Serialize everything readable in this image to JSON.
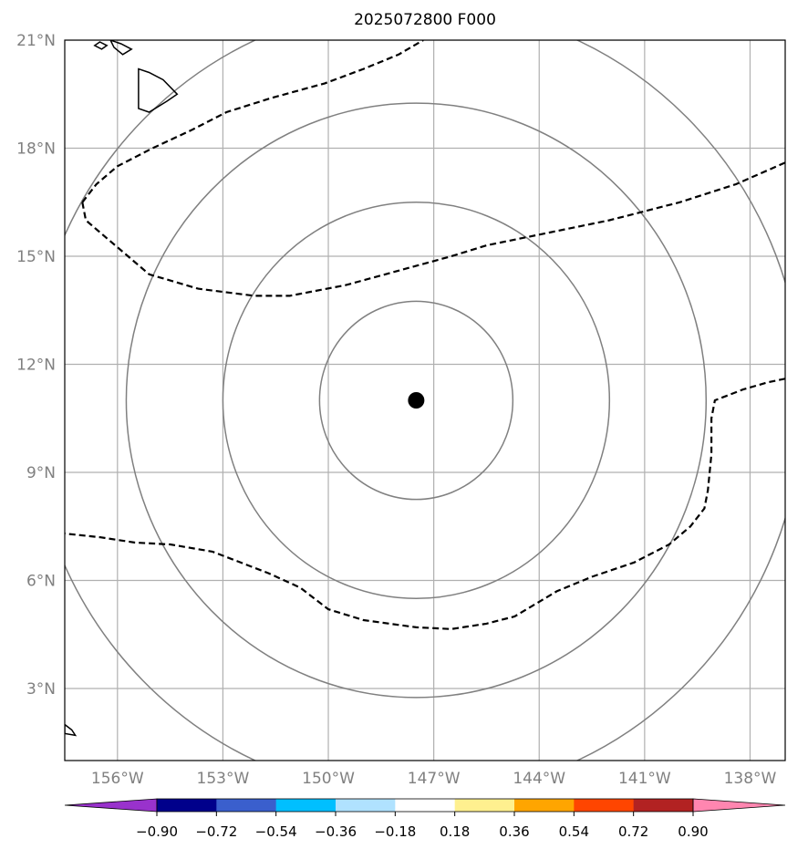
{
  "title": "2025072800 F000",
  "map": {
    "lat_range": [
      1,
      21
    ],
    "lon_range": [
      -158,
      -137.5
    ],
    "lat_ticks": [
      {
        "value": 21,
        "label": "21°N"
      },
      {
        "value": 18,
        "label": "18°N"
      },
      {
        "value": 15,
        "label": "15°N"
      },
      {
        "value": 12,
        "label": "12°N"
      },
      {
        "value": 9,
        "label": "9°N"
      },
      {
        "value": 6,
        "label": "6°N"
      },
      {
        "value": 3,
        "label": "3°N"
      }
    ],
    "lon_ticks": [
      {
        "value": -156.5,
        "label": "156°W"
      },
      {
        "value": -153.5,
        "label": "153°W"
      },
      {
        "value": -150.5,
        "label": "150°W"
      },
      {
        "value": -147.5,
        "label": "147°W"
      },
      {
        "value": -144.5,
        "label": "144°W"
      },
      {
        "value": -141.5,
        "label": "141°W"
      },
      {
        "value": -138.5,
        "label": "138°W"
      }
    ],
    "center": {
      "lon": -148,
      "lat": 11
    },
    "range_ring_radii_deg": [
      2.75,
      5.5,
      8.25,
      11
    ],
    "contour_color": "#000000",
    "ring_color": "#808080",
    "grid_color": "#b0b0b0",
    "dashed_contours": [
      [
        [
          -157.5,
          16.5
        ],
        [
          -157.1,
          17.0
        ],
        [
          -156.5,
          17.5
        ],
        [
          -155.5,
          18.0
        ],
        [
          -154.4,
          18.5
        ],
        [
          -153.4,
          19.0
        ],
        [
          -152.1,
          19.4
        ],
        [
          -150.6,
          19.8
        ],
        [
          -149.5,
          20.2
        ],
        [
          -148.5,
          20.6
        ],
        [
          -147.8,
          21.0
        ]
      ],
      [
        [
          -157.5,
          16.5
        ],
        [
          -157.4,
          16.0
        ],
        [
          -156.8,
          15.5
        ],
        [
          -156.2,
          15.0
        ],
        [
          -155.6,
          14.5
        ],
        [
          -154.2,
          14.1
        ],
        [
          -152.6,
          13.9
        ],
        [
          -151.6,
          13.9
        ],
        [
          -150.0,
          14.2
        ],
        [
          -148.5,
          14.6
        ],
        [
          -147.0,
          15.0
        ],
        [
          -146.0,
          15.3
        ],
        [
          -144.5,
          15.6
        ],
        [
          -142.5,
          16.0
        ],
        [
          -140.5,
          16.5
        ],
        [
          -138.9,
          17.0
        ],
        [
          -137.5,
          17.6
        ]
      ],
      [
        [
          -137.5,
          11.6
        ],
        [
          -138.0,
          11.5
        ],
        [
          -138.7,
          11.3
        ],
        [
          -139.5,
          11.0
        ],
        [
          -139.6,
          10.5
        ],
        [
          -139.6,
          9.5
        ],
        [
          -139.7,
          8.5
        ],
        [
          -139.8,
          8.0
        ],
        [
          -140.2,
          7.5
        ],
        [
          -140.8,
          7.0
        ],
        [
          -141.8,
          6.5
        ],
        [
          -143.0,
          6.1
        ],
        [
          -144.0,
          5.7
        ],
        [
          -145.2,
          5.0
        ],
        [
          -146.0,
          4.8
        ],
        [
          -147.0,
          4.65
        ],
        [
          -148.0,
          4.7
        ],
        [
          -149.5,
          4.9
        ],
        [
          -150.5,
          5.2
        ],
        [
          -151.3,
          5.8
        ],
        [
          -152.2,
          6.2
        ],
        [
          -153.8,
          6.8
        ],
        [
          -155.0,
          7.0
        ],
        [
          -156.0,
          7.05
        ],
        [
          -157.0,
          7.2
        ],
        [
          -158.0,
          7.3
        ]
      ]
    ],
    "islands": [
      [
        [
          -155.9,
          20.2
        ],
        [
          -155.6,
          20.1
        ],
        [
          -155.2,
          19.9
        ],
        [
          -154.8,
          19.5
        ],
        [
          -155.1,
          19.3
        ],
        [
          -155.6,
          19.0
        ],
        [
          -155.9,
          19.1
        ],
        [
          -155.9,
          19.6
        ]
      ],
      [
        [
          -156.7,
          21.0
        ],
        [
          -156.4,
          20.9
        ],
        [
          -156.1,
          20.75
        ],
        [
          -156.35,
          20.6
        ],
        [
          -156.6,
          20.8
        ]
      ],
      [
        [
          -157.0,
          20.95
        ],
        [
          -156.8,
          20.85
        ],
        [
          -156.95,
          20.75
        ],
        [
          -157.15,
          20.85
        ]
      ],
      [
        [
          -158.0,
          2.0
        ],
        [
          -157.8,
          1.85
        ],
        [
          -157.7,
          1.7
        ],
        [
          -158.0,
          1.75
        ]
      ]
    ]
  },
  "colorbar": {
    "colors": [
      "#9932cc",
      "#00008b",
      "#3a5fcd",
      "#00bfff",
      "#b0e2ff",
      "#ffffff",
      "#fff08f",
      "#ffa500",
      "#ff4500",
      "#b22222",
      "#ff86b0"
    ],
    "labels": [
      "−0.90",
      "−0.72",
      "−0.54",
      "−0.36",
      "−0.18",
      "0.18",
      "0.36",
      "0.54",
      "0.72",
      "0.90"
    ]
  }
}
